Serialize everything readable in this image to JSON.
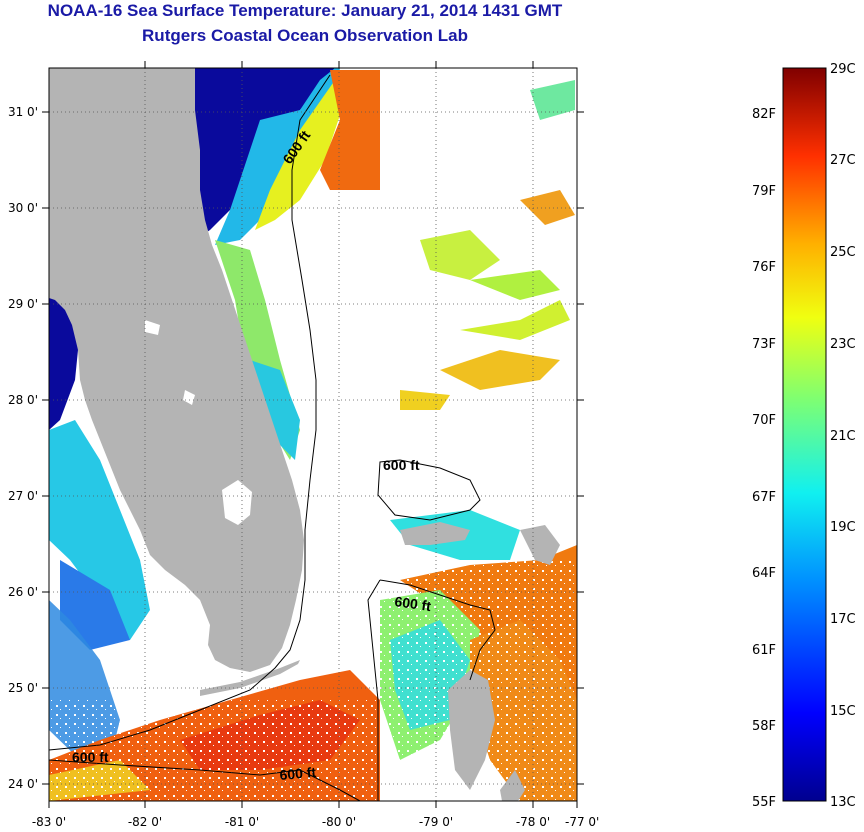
{
  "header": {
    "title": "NOAA-16 Sea Surface Temperature:  January 21, 2014 1431 GMT",
    "subtitle": "Rutgers Coastal Ocean Observation Lab"
  },
  "map": {
    "lon_labels": [
      "-83 0'",
      "-82 0'",
      "-81 0'",
      "-80 0'",
      "-79 0'",
      "-78 0'",
      "-77 0'"
    ],
    "lat_labels": [
      "31 0'",
      "30 0'",
      "29 0'",
      "28 0'",
      "27 0'",
      "26 0'",
      "25 0'",
      "24 0'"
    ],
    "contour_labels": [
      "600 ft",
      "600 ft",
      "600 ft",
      "600 ft",
      "600 ft"
    ],
    "colors": {
      "land": "#b4b4b4",
      "cold": "#0a0a9c",
      "mid": "#27d0e0",
      "warm": "#f06a10"
    }
  },
  "colorbar": {
    "celsius": [
      "29C",
      "27C",
      "25C",
      "23C",
      "21C",
      "19C",
      "17C",
      "15C",
      "13C"
    ],
    "fahrenheit": [
      "82F",
      "79F",
      "76F",
      "73F",
      "70F",
      "67F",
      "64F",
      "61F",
      "58F",
      "55F"
    ]
  }
}
